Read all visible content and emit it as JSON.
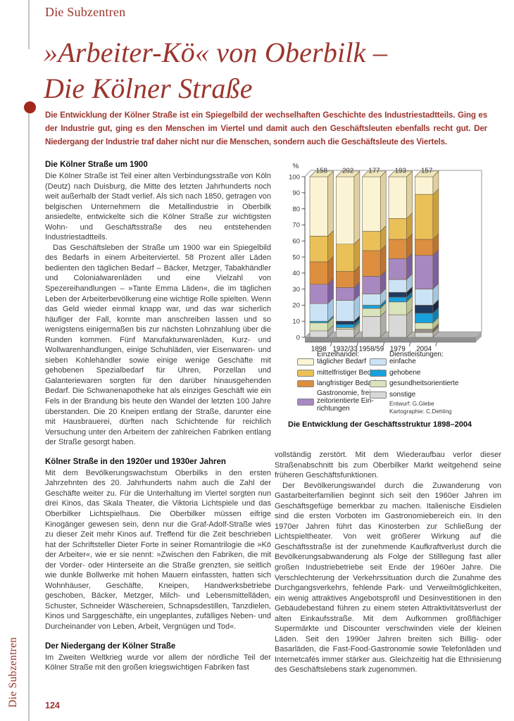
{
  "page": {
    "kicker": "Die Subzentren",
    "title_line1": "»Arbeiter-Kö« von Oberbilk –",
    "title_line2": "Die Kölner Straße",
    "intro": "Die Entwicklung der Kölner Straße ist ein Spiegelbild der wechselhaften Geschichte des Industriestadtteils. Ging es der Industrie gut, ging es den Menschen im Viertel und damit auch den Geschäftsleuten ebenfalls recht gut. Der Niedergang der Industrie traf daher nicht nur die Menschen, sondern auch die Geschäftsleute des Viertels.",
    "page_number": "124",
    "side_label": "Die Subzentren",
    "accent_color": "#9c352e",
    "bullet_color": "#a3281b"
  },
  "left": {
    "s1": {
      "heading": "Die Kölner Straße um 1900",
      "p1": "Die Kölner Straße ist Teil einer alten Verbindungsstraße von Köln (Deutz) nach Duisburg, die Mitte des letzten Jahrhunderts noch weit außerhalb der Stadt verlief. Als sich nach 1850, getragen von belgischen Unternehmern die Metallindustrie in Oberbilk ansiedelte, entwickelte sich die Kölner Straße zur wichtigsten Wohn- und Geschäftsstraße des neu entstehenden Industriestadtteils.",
      "p2": "Das Geschäftsleben der Straße um 1900 war ein Spiegelbild des Bedarfs in einem Arbeiterviertel. 58 Prozent aller Läden bedienten den täglichen Bedarf – Bäcker, Metzger, Tabakhändler und Colonialwarenläden und eine Vielzahl von Spezereihandlungen – »Tante Emma Läden«, die im täglichen Leben der Arbeiterbevölkerung eine wichtige Rolle spielten. Wenn das Geld wieder einmal knapp war, und das war sicherlich häufiger der Fall, konnte man anschreiben lassen und so wenigstens einigermaßen bis zur nächsten Lohnzahlung über die Runden kommen. Fünf Manufakturwarenläden, Kurz- und Wollwarenhandlungen, einige Schuhläden, vier Eisenwaren- und sieben Kohlehändler sowie einige wenige Geschäfte mit gehobenen Spezialbedarf für Uhren, Porzellan und Galanteriewaren sorgten für den darüber hinausgehenden Bedarf. Die Schwanenapotheke hat als einziges Geschäft wie ein Fels in der Brandung bis heute den Wandel der letzten 100 Jahre überstanden. Die 20 Kneipen entlang der Straße, darunter eine mit Hausbrauerei, dürften nach Schichtende für reichlich Versuchung unter den Arbeitern der zahlreichen Fabriken entlang der Straße gesorgt haben."
    },
    "s2": {
      "heading": "Kölner Straße in den 1920er und 1930er Jahren",
      "p1": "Mit dem Bevölkerungswachstum Oberbilks in den ersten Jahrzehnten des 20. Jahrhunderts nahm auch die Zahl der Geschäfte weiter zu. Für die Unterhaltung im Viertel sorgten nun drei Kinos, das Skala Theater, die Viktoria Lichtspiele und das Oberbilker Lichtspielhaus. Die Oberbilker müssen eifrige Kinogänger gewesen sein, denn nur die Graf-Adolf-Straße wies zu dieser Zeit mehr Kinos auf. Treffend für die Zeit beschrieben hat der Schriftsteller Dieter Forte in seiner Romantrilogie die »Kö der Arbeiter«, wie er sie nennt: »Zwischen den Fabriken, die mit der Vorder- oder Hinterseite an die Straße grenzten, sie seitlich wie dunkle Bollwerke mit hohen Mauern einfassten, hatten sich Wohnhäuser, Geschäfte, Kneipen, Handwerksbetriebe geschoben, Bäcker, Metzger, Milch- und Lebensmittelläden, Schuster, Schneider Wäschereien, Schnapsdestillen, Tanzdielen, Kinos und Sarggeschäfte, ein ungeplantes, zufälliges Neben- und Durcheinander von Leben, Arbeit, Vergnügen und Tod«."
    },
    "s3": {
      "heading": "Der Niedergang der Kölner Straße",
      "p1": "Im Zweiten Weltkrieg wurde vor allem der nördliche Teil der Kölner Straße mit den großen kriegswichtigen Fabriken fast"
    }
  },
  "right": {
    "p1": "vollständig zerstört. Mit dem Wiederaufbau verlor dieser Straßenabschnitt bis zum Oberbilker Markt weitgehend seine früheren Geschäftsfunktionen.",
    "p2": "Der Bevölkerungswandel durch die Zuwanderung von Gastarbeiterfamilien beginnt sich seit den 1960er Jahren im Geschäftsgefüge bemerkbar zu machen. Italienische Eisdielen sind die ersten Vorboten im Gastronomiebereich ein. In den 1970er Jahren führt das Kinosterben zur Schließung der Lichtspieltheater. Von weit größerer Wirkung auf die Geschäftsstraße ist der zunehmende Kaufkraftverlust durch die Bevölkerungsabwanderung als Folge der Stilllegung fast aller großen Industriebetriebe seit Ende der 1960er Jahre. Die Verschlechterung der Verkehrssituation durch die Zunahme des Durchgangsverkehrs, fehlende Park- und Verweilmöglichkeiten, ein wenig attraktives Angebotsprofil und Desinvestitionen in den Gebäudebestand führen zu einem steten Attraktivitätsverlust der alten Einkaufsstraße. Mit dem Aufkommen großflächiger Supermärkte und Discounter verschwinden viele der kleinen Läden. Seit den 1990er Jahren breiten sich Billig- oder Basarläden, die Fast-Food-Gastronomie sowie Telefonläden und Internetcafés immer stärker aus. Gleichzeitig hat die Ethnisierung des Geschäftslebens stark zugenommen."
  },
  "figure": {
    "caption": "Die Entwicklung der Geschäftsstruktur 1898–2004",
    "credits": "Entwurf: G.Glebe\nKartographie: C.Dehling",
    "legend": {
      "einzelhandel": {
        "title": "Einzelhandel:",
        "items": [
          {
            "label": "täglicher Bedarf",
            "key": "yellow"
          },
          {
            "label": "mittelfristiger Bedarf",
            "key": "gold"
          },
          {
            "label": "langfristiger Bedarf",
            "key": "orange"
          },
          {
            "label": "Gastronomie, frei-\nzeitorientierte Ein-\nrichtungen",
            "key": "purple"
          }
        ]
      },
      "dienstleistungen": {
        "title": "Dienstleistungen:",
        "items": [
          {
            "label": "einfache",
            "key": "lightblue"
          },
          {
            "label": "gehobene",
            "key": "brightblue"
          },
          {
            "label": "gesundheitsorientierte",
            "key": "green"
          },
          {
            "label": "sonstige",
            "key": "gray"
          }
        ]
      }
    },
    "palette": {
      "yellow": {
        "front": "#faf4d4",
        "side": "#e0d0a0",
        "top": "#efe6bc"
      },
      "gold": {
        "front": "#eac158",
        "side": "#cda03e"
      },
      "orange": {
        "front": "#dd8e3f",
        "side": "#bc7430"
      },
      "purple": {
        "front": "#a888c0",
        "side": "#7c5f9e"
      },
      "lightblue": {
        "front": "#cbe3f5",
        "side": "#a3c6e2"
      },
      "brightblue": {
        "front": "#18a0dc",
        "side": "#0f7fb0"
      },
      "navy": {
        "front": "#233a60",
        "side": "#1a2847"
      },
      "green": {
        "front": "#d9e3bc",
        "side": "#b6c593"
      },
      "gray": {
        "front": "#d8d8d8",
        "side": "#ababab"
      },
      "darkgray": {
        "front": "#97918b",
        "side": "#6f6a64"
      }
    },
    "chart_data": {
      "type": "bar",
      "stacked": true,
      "title": "Die Entwicklung der Geschäftsstruktur 1898–2004",
      "xlabel": "",
      "ylabel": "%",
      "ylim": [
        0,
        100
      ],
      "ytick_step": 10,
      "grid": false,
      "legend_position": "bottom",
      "categories": [
        "1898",
        "1932/33",
        "1958/59",
        "1979",
        "2004"
      ],
      "totals": [
        158,
        202,
        177,
        193,
        157
      ],
      "series": [
        {
          "name": "täglicher Bedarf",
          "values": [
            37,
            42,
            34,
            26,
            11
          ]
        },
        {
          "name": "mittelfristiger Bedarf",
          "values": [
            16,
            17,
            12,
            13,
            28
          ]
        },
        {
          "name": "langfristiger Bedarf",
          "values": [
            14,
            10,
            16,
            12,
            10
          ]
        },
        {
          "name": "Gastronomie, freizeitorientierte Einrichtungen",
          "values": [
            12,
            8,
            11,
            13,
            21
          ]
        },
        {
          "name": "einfache Dienstleistungen",
          "values": [
            11,
            13,
            7,
            8,
            10
          ]
        },
        {
          "name": "gehobene Dienstleistungen",
          "values": [
            1,
            4,
            2,
            6,
            11
          ]
        },
        {
          "name": "gesundheitsorientierte Dienstleistungen",
          "values": [
            5,
            1,
            5,
            8,
            4
          ]
        },
        {
          "name": "sonstige Dienstleistungen",
          "values": [
            4,
            5,
            13,
            14,
            5
          ]
        }
      ],
      "stacks": [
        {
          "year": "1898",
          "total": "158",
          "segments": [
            [
              "gray",
              4
            ],
            [
              "green",
              5
            ],
            [
              "brightblue",
              1
            ],
            [
              "lightblue",
              11
            ],
            [
              "purple",
              12
            ],
            [
              "orange",
              14
            ],
            [
              "gold",
              16
            ],
            [
              "yellow",
              37
            ]
          ]
        },
        {
          "year": "1932/33",
          "total": "202",
          "segments": [
            [
              "gray",
              5
            ],
            [
              "green",
              1
            ],
            [
              "brightblue",
              2
            ],
            [
              "navy",
              2
            ],
            [
              "lightblue",
              13
            ],
            [
              "purple",
              8
            ],
            [
              "orange",
              10
            ],
            [
              "gold",
              17
            ],
            [
              "yellow",
              42
            ]
          ]
        },
        {
          "year": "1958/59",
          "total": "177",
          "segments": [
            [
              "gray",
              13
            ],
            [
              "green",
              5
            ],
            [
              "brightblue",
              2
            ],
            [
              "lightblue",
              7
            ],
            [
              "purple",
              11
            ],
            [
              "orange",
              16
            ],
            [
              "gold",
              12
            ],
            [
              "yellow",
              34
            ]
          ]
        },
        {
          "year": "1979",
          "total": "193",
          "segments": [
            [
              "gray",
              14
            ],
            [
              "green",
              8
            ],
            [
              "brightblue",
              3
            ],
            [
              "navy",
              3
            ],
            [
              "lightblue",
              8
            ],
            [
              "purple",
              13
            ],
            [
              "orange",
              12
            ],
            [
              "gold",
              13
            ],
            [
              "yellow",
              26
            ]
          ]
        },
        {
          "year": "2004",
          "total": "157",
          "segments": [
            [
              "gray",
              3
            ],
            [
              "darkgray",
              2
            ],
            [
              "green",
              4
            ],
            [
              "brightblue",
              6
            ],
            [
              "navy",
              5
            ],
            [
              "lightblue",
              10
            ],
            [
              "purple",
              21
            ],
            [
              "orange",
              10
            ],
            [
              "gold",
              28
            ],
            [
              "yellow",
              11
            ]
          ]
        }
      ]
    }
  }
}
